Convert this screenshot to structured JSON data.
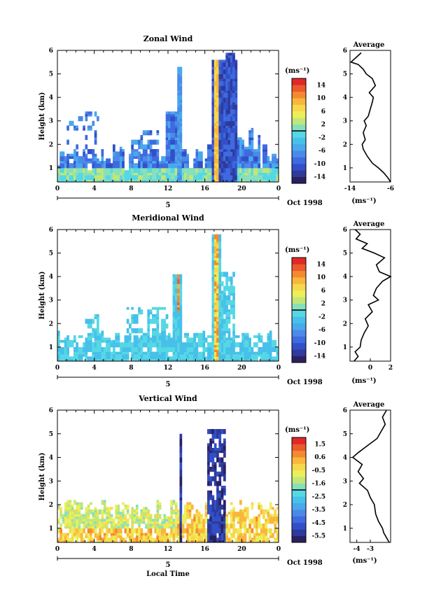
{
  "figure": {
    "time_axis_label": "Local Time",
    "date_label": "Oct 1998",
    "day_label": "5",
    "time_ticks": [
      "0",
      "4",
      "8",
      "12",
      "16",
      "20",
      "0"
    ],
    "height_ticks": [
      "1",
      "2",
      "3",
      "4",
      "5",
      "6"
    ],
    "height_label": "Height (km)",
    "colorbar_unit": "(ms⁻¹)",
    "average_title": "Average",
    "average_unit": "(ms⁻¹)",
    "palette": [
      "#2b2060",
      "#2f3a9a",
      "#3150c8",
      "#3f6ae0",
      "#4c8ae8",
      "#4aa8ec",
      "#47c0ea",
      "#56d8e4",
      "#86e0bc",
      "#c2e678",
      "#ecef5a",
      "#f7d84c",
      "#f9b63c",
      "#f48a30",
      "#ec5a2c",
      "#e02828"
    ]
  },
  "chart_data": [
    {
      "type": "heatmap",
      "title": "Zonal Wind",
      "ylabel": "Height (km)",
      "xlabel": "",
      "x_range_hours": [
        0,
        24
      ],
      "y_range_km": [
        0.4,
        6
      ],
      "colorbar_ticks": [
        "14",
        "10",
        "6",
        "2",
        "-2",
        "-6",
        "-10",
        "-14"
      ],
      "colorbar_range": [
        -16,
        16
      ],
      "contour_at": 0,
      "average_profile": {
        "xlim": [
          -14,
          -6
        ],
        "x_ticks": [
          "-14",
          "-6"
        ],
        "heights_km": [
          0.4,
          0.6,
          0.8,
          1.0,
          1.2,
          1.5,
          1.8,
          2.0,
          2.2,
          2.5,
          2.8,
          3.0,
          3.2,
          3.5,
          3.8,
          4.0,
          4.2,
          4.5,
          4.8,
          5.0,
          5.2,
          5.4,
          5.5,
          5.7,
          5.9
        ],
        "values_ms": [
          -6.0,
          -6.6,
          -7.4,
          -8.4,
          -9.6,
          -10.6,
          -11.4,
          -11.6,
          -11.0,
          -11.4,
          -10.8,
          -11.2,
          -10.4,
          -10.0,
          -9.6,
          -9.4,
          -10.2,
          -9.0,
          -9.6,
          -10.8,
          -11.4,
          -12.4,
          -13.8,
          -12.8,
          -11.8
        ]
      }
    },
    {
      "type": "heatmap",
      "title": "Meridional Wind",
      "ylabel": "Height (km)",
      "xlabel": "",
      "x_range_hours": [
        0,
        24
      ],
      "y_range_km": [
        0.4,
        6
      ],
      "colorbar_ticks": [
        "14",
        "10",
        "6",
        "2",
        "-2",
        "-6",
        "-10",
        "-14"
      ],
      "colorbar_range": [
        -16,
        16
      ],
      "contour_at": 0,
      "average_profile": {
        "xlim": [
          -2,
          2
        ],
        "x_ticks": [
          "0",
          "2"
        ],
        "heights_km": [
          0.4,
          0.6,
          0.8,
          1.0,
          1.3,
          1.6,
          1.9,
          2.2,
          2.5,
          2.8,
          3.0,
          3.2,
          3.5,
          3.8,
          4.0,
          4.2,
          4.5,
          4.8,
          5.0,
          5.2,
          5.4,
          5.6,
          5.8,
          6.0
        ],
        "values_ms": [
          -1.6,
          -1.2,
          -1.5,
          -1.0,
          -0.9,
          -0.6,
          -0.2,
          -0.5,
          0.2,
          -0.2,
          0.8,
          0.3,
          0.6,
          1.2,
          2.0,
          0.9,
          0.6,
          1.4,
          0.4,
          -0.8,
          -0.3,
          -1.4,
          -1.0,
          -1.5
        ]
      }
    },
    {
      "type": "heatmap",
      "title": "Vertical Wind",
      "ylabel": "Height (km)",
      "xlabel": "Local Time",
      "x_range_hours": [
        0,
        24
      ],
      "y_range_km": [
        0.4,
        6
      ],
      "colorbar_ticks": [
        "1.5",
        "0.6",
        "-0.5",
        "-1.6",
        "-2.5",
        "-3.5",
        "-4.5",
        "-5.5"
      ],
      "colorbar_range": [
        -6,
        2
      ],
      "average_profile": {
        "xlim": [
          -4.5,
          -1.5
        ],
        "x_ticks": [
          "-4",
          "-3"
        ],
        "heights_km": [
          0.4,
          0.6,
          0.8,
          1.0,
          1.3,
          1.6,
          2.0,
          2.3,
          2.6,
          2.9,
          3.1,
          3.4,
          3.7,
          4.0,
          4.2,
          4.5,
          4.8,
          5.1,
          5.4,
          5.7,
          6.0
        ],
        "values_ms": [
          -1.6,
          -1.8,
          -2.0,
          -2.1,
          -2.4,
          -2.6,
          -2.7,
          -3.0,
          -3.2,
          -3.8,
          -3.5,
          -3.9,
          -3.6,
          -4.3,
          -3.9,
          -3.2,
          -2.5,
          -2.2,
          -1.9,
          -2.1,
          -1.8
        ]
      }
    }
  ]
}
